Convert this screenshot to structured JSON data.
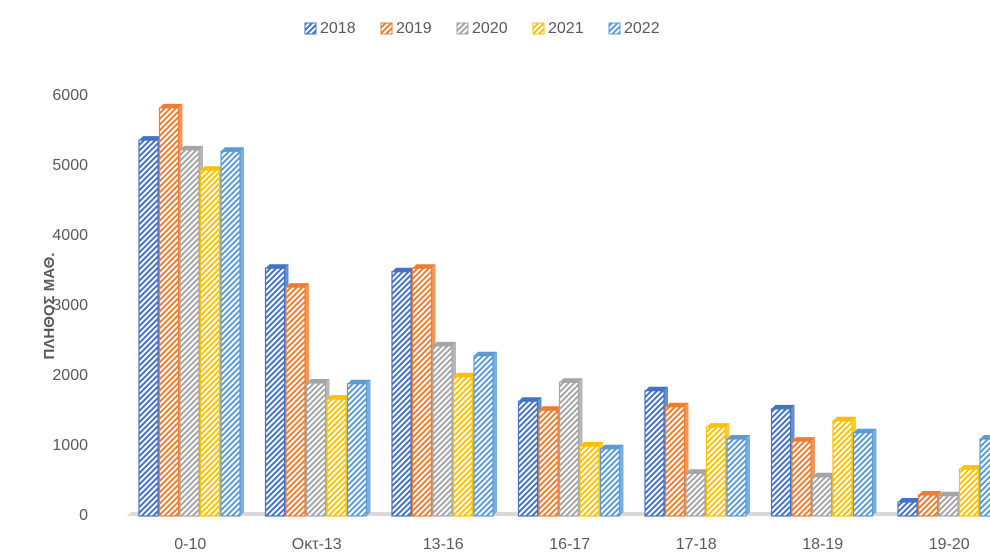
{
  "chart_data": {
    "type": "bar",
    "y_label": "ΠΛΗΘΟΣ ΜΑΘ.",
    "categories": [
      "0-10",
      "Οκτ-13",
      "13-16",
      "16-17",
      "17-18",
      "18-19",
      "19-20"
    ],
    "series": [
      {
        "name": "2018",
        "color": "#4472c4",
        "values": [
          5370,
          3540,
          3490,
          1640,
          1790,
          1530,
          200
        ]
      },
      {
        "name": "2019",
        "color": "#ed7d31",
        "values": [
          5830,
          3270,
          3540,
          1510,
          1560,
          1070,
          300
        ]
      },
      {
        "name": "2020",
        "color": "#a5a5a5",
        "values": [
          5230,
          1900,
          2430,
          1910,
          610,
          560,
          290
        ]
      },
      {
        "name": "2021",
        "color": "#ffc000",
        "values": [
          4940,
          1670,
          1990,
          1000,
          1270,
          1360,
          670
        ]
      },
      {
        "name": "2022",
        "color": "#5b9bd5",
        "values": [
          5210,
          1890,
          2290,
          960,
          1100,
          1190,
          1100
        ]
      }
    ],
    "ylim": [
      0,
      6000
    ],
    "yticks": [
      0,
      1000,
      2000,
      3000,
      4000,
      5000,
      6000
    ],
    "grid": false,
    "legend": "top"
  }
}
